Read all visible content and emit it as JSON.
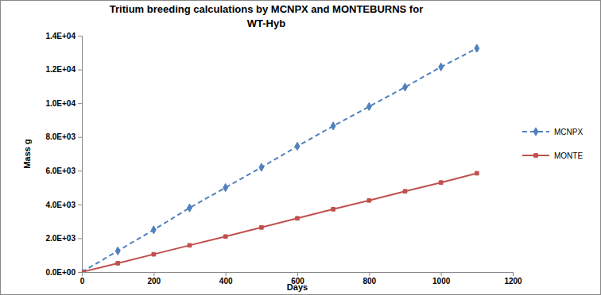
{
  "chart_data": {
    "type": "line",
    "title": "Tritium breeding calculations by MCNPX and MONTEBURNS for WT-Hyb",
    "x_label": "Days",
    "y_label": "Mass g",
    "x": [
      0,
      100,
      200,
      300,
      400,
      500,
      600,
      700,
      800,
      900,
      1000,
      1100
    ],
    "series": [
      {
        "name": "MCNPX",
        "color": "#4f81bd",
        "marker": "diamond",
        "line_style": "dashed",
        "values": [
          0,
          1250,
          2500,
          3800,
          5000,
          6200,
          7450,
          8650,
          9800,
          10950,
          12150,
          13250
        ]
      },
      {
        "name": "MONTE",
        "color": "#c0504d",
        "marker": "square",
        "line_style": "solid",
        "values": [
          0,
          520,
          1050,
          1580,
          2100,
          2640,
          3180,
          3720,
          4240,
          4780,
          5300,
          5850
        ]
      }
    ],
    "xlim": [
      0,
      1200
    ],
    "xticks": [
      0,
      200,
      400,
      600,
      800,
      1000,
      1200
    ],
    "ylim": [
      0,
      14000
    ],
    "yticks": [
      {
        "value": 0,
        "label": "0.0E+00"
      },
      {
        "value": 2000,
        "label": "2.0E+03"
      },
      {
        "value": 4000,
        "label": "4.0E+03"
      },
      {
        "value": 6000,
        "label": "6.0E+03"
      },
      {
        "value": 8000,
        "label": "8.0E+03"
      },
      {
        "value": 10000,
        "label": "1.0E+04"
      },
      {
        "value": 12000,
        "label": "1.2E+04"
      },
      {
        "value": 14000,
        "label": "1.4E+04"
      }
    ],
    "grid": false,
    "legend": "right"
  }
}
